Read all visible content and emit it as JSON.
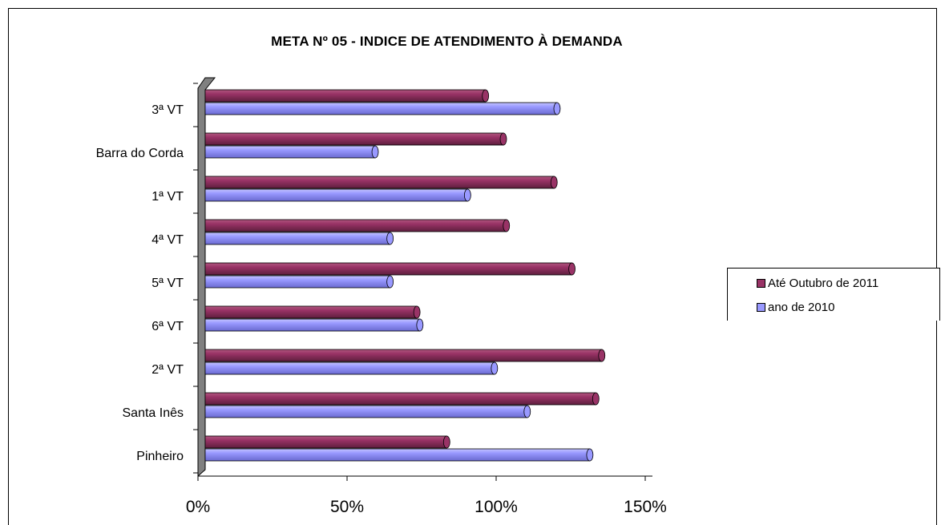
{
  "chart_data": {
    "type": "bar",
    "orientation": "horizontal",
    "title": "META Nº 05 - INDICE DE ATENDIMENTO À DEMANDA",
    "categories": [
      "3ª VT",
      "Barra do Corda",
      "1ª VT",
      "4ª VT",
      "5ª VT",
      "6ª VT",
      "2ª VT",
      "Santa Inês",
      "Pinheiro"
    ],
    "series": [
      {
        "name": "Até Outubro  de 2011",
        "color": "#993366",
        "values": [
          94,
          100,
          117,
          101,
          123,
          71,
          133,
          131,
          81
        ]
      },
      {
        "name": "ano de 2010",
        "color": "#9999ff",
        "values": [
          118,
          57,
          88,
          62,
          62,
          72,
          97,
          108,
          129
        ]
      }
    ],
    "xlim": [
      0,
      150
    ],
    "xticks": [
      "0%",
      "50%",
      "100%",
      "150%"
    ],
    "xlabel": "",
    "ylabel": "",
    "legend_position": "right",
    "grid": false
  }
}
